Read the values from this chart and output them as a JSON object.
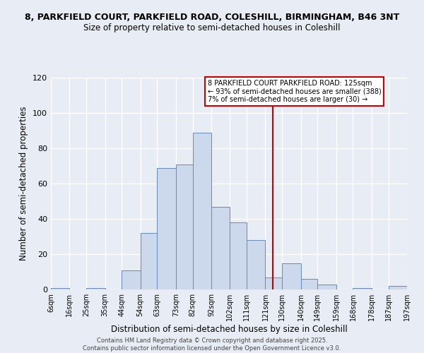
{
  "title1": "8, PARKFIELD COURT, PARKFIELD ROAD, COLESHILL, BIRMINGHAM, B46 3NT",
  "title2": "Size of property relative to semi-detached houses in Coleshill",
  "xlabel": "Distribution of semi-detached houses by size in Coleshill",
  "ylabel": "Number of semi-detached properties",
  "bin_labels": [
    "6sqm",
    "16sqm",
    "25sqm",
    "35sqm",
    "44sqm",
    "54sqm",
    "63sqm",
    "73sqm",
    "82sqm",
    "92sqm",
    "102sqm",
    "111sqm",
    "121sqm",
    "130sqm",
    "140sqm",
    "149sqm",
    "159sqm",
    "168sqm",
    "178sqm",
    "187sqm",
    "197sqm"
  ],
  "bin_edges": [
    6,
    16,
    25,
    35,
    44,
    54,
    63,
    73,
    82,
    92,
    102,
    111,
    121,
    130,
    140,
    149,
    159,
    168,
    178,
    187,
    197
  ],
  "counts": [
    1,
    0,
    1,
    0,
    11,
    32,
    69,
    71,
    89,
    47,
    38,
    28,
    7,
    15,
    6,
    3,
    0,
    1,
    0,
    2
  ],
  "bar_color": "#ccd9ec",
  "bar_edge_color": "#6688bb",
  "property_value": 125,
  "vline_color": "#cc0000",
  "legend_title": "8 PARKFIELD COURT PARKFIELD ROAD: 125sqm",
  "legend_line2": "← 93% of semi-detached houses are smaller (388)",
  "legend_line3": "7% of semi-detached houses are larger (30) →",
  "ylim": [
    0,
    120
  ],
  "yticks": [
    0,
    20,
    40,
    60,
    80,
    100,
    120
  ],
  "bg_color": "#e8edf5",
  "grid_color": "#ffffff",
  "footer1": "Contains HM Land Registry data © Crown copyright and database right 2025.",
  "footer2": "Contains public sector information licensed under the Open Government Licence v3.0."
}
